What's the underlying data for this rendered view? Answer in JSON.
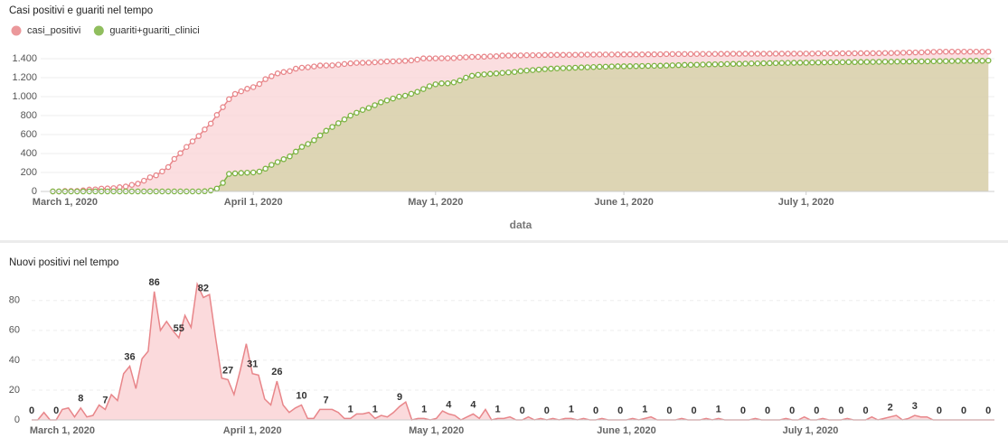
{
  "chart_data": [
    {
      "type": "area",
      "title": "Casi positivi e guariti nel tempo",
      "x_label": "data",
      "legend": "top-left",
      "markers": true,
      "grid": true,
      "xlim": [
        "2020-02-26",
        "2020-08-01"
      ],
      "xticks": [
        {
          "value": "2020-03-01",
          "label": "March 1, 2020"
        },
        {
          "value": "2020-04-01",
          "label": "April 1, 2020"
        },
        {
          "value": "2020-05-01",
          "label": "May 1, 2020"
        },
        {
          "value": "2020-06-01",
          "label": "June 1, 2020"
        },
        {
          "value": "2020-07-01",
          "label": "July 1, 2020"
        }
      ],
      "ylim": [
        0,
        1500
      ],
      "yticks": [
        0,
        200,
        400,
        600,
        800,
        {
          "value": 1000,
          "label": "1.000"
        },
        {
          "value": 1200,
          "label": "1.200"
        },
        {
          "value": 1400,
          "label": "1.400"
        }
      ],
      "x": [
        "2020-02-28",
        "2020-02-29",
        "2020-03-01",
        "2020-03-02",
        "2020-03-03",
        "2020-03-04",
        "2020-03-05",
        "2020-03-06",
        "2020-03-07",
        "2020-03-08",
        "2020-03-09",
        "2020-03-10",
        "2020-03-11",
        "2020-03-12",
        "2020-03-13",
        "2020-03-14",
        "2020-03-15",
        "2020-03-16",
        "2020-03-17",
        "2020-03-18",
        "2020-03-19",
        "2020-03-20",
        "2020-03-21",
        "2020-03-22",
        "2020-03-23",
        "2020-03-24",
        "2020-03-25",
        "2020-03-26",
        "2020-03-27",
        "2020-03-28",
        "2020-03-29",
        "2020-03-30",
        "2020-03-31",
        "2020-04-01",
        "2020-04-02",
        "2020-04-03",
        "2020-04-04",
        "2020-04-05",
        "2020-04-06",
        "2020-04-07",
        "2020-04-08",
        "2020-04-09",
        "2020-04-10",
        "2020-04-11",
        "2020-04-12",
        "2020-04-13",
        "2020-04-14",
        "2020-04-15",
        "2020-04-16",
        "2020-04-17",
        "2020-04-18",
        "2020-04-19",
        "2020-04-20",
        "2020-04-21",
        "2020-04-22",
        "2020-04-23",
        "2020-04-24",
        "2020-04-25",
        "2020-04-26",
        "2020-04-27",
        "2020-04-28",
        "2020-04-29",
        "2020-04-30",
        "2020-05-01",
        "2020-05-02",
        "2020-05-03",
        "2020-05-04",
        "2020-05-05",
        "2020-05-06",
        "2020-05-07",
        "2020-05-08",
        "2020-05-09",
        "2020-05-10",
        "2020-05-11",
        "2020-05-12",
        "2020-05-13",
        "2020-05-14",
        "2020-05-15",
        "2020-05-16",
        "2020-05-17",
        "2020-05-18",
        "2020-05-19",
        "2020-05-20",
        "2020-05-21",
        "2020-05-22",
        "2020-05-23",
        "2020-05-24",
        "2020-05-25",
        "2020-05-26",
        "2020-05-27",
        "2020-05-28",
        "2020-05-29",
        "2020-05-30",
        "2020-05-31",
        "2020-06-01",
        "2020-06-02",
        "2020-06-03",
        "2020-06-04",
        "2020-06-05",
        "2020-06-06",
        "2020-06-07",
        "2020-06-08",
        "2020-06-09",
        "2020-06-10",
        "2020-06-11",
        "2020-06-12",
        "2020-06-13",
        "2020-06-14",
        "2020-06-15",
        "2020-06-16",
        "2020-06-17",
        "2020-06-18",
        "2020-06-19",
        "2020-06-20",
        "2020-06-21",
        "2020-06-22",
        "2020-06-23",
        "2020-06-24",
        "2020-06-25",
        "2020-06-26",
        "2020-06-27",
        "2020-06-28",
        "2020-06-29",
        "2020-06-30",
        "2020-07-01",
        "2020-07-02",
        "2020-07-03",
        "2020-07-04",
        "2020-07-05",
        "2020-07-06",
        "2020-07-07",
        "2020-07-08",
        "2020-07-09",
        "2020-07-10",
        "2020-07-11",
        "2020-07-12",
        "2020-07-13",
        "2020-07-14",
        "2020-07-15",
        "2020-07-16",
        "2020-07-17",
        "2020-07-18",
        "2020-07-19",
        "2020-07-20",
        "2020-07-21",
        "2020-07-22",
        "2020-07-23",
        "2020-07-24",
        "2020-07-25",
        "2020-07-26",
        "2020-07-27",
        "2020-07-28",
        "2020-07-29",
        "2020-07-30",
        "2020-07-31"
      ],
      "series": [
        {
          "name": "casi_positivi",
          "color": "#e8868a",
          "fill": "#f9d3d6",
          "values": [
            0,
            0,
            5,
            5,
            5,
            12,
            20,
            22,
            30,
            32,
            35,
            45,
            52,
            69,
            82,
            113,
            149,
            170,
            211,
            257,
            343,
            403,
            469,
            529,
            584,
            654,
            716,
            807,
            889,
            973,
            1028,
            1056,
            1083,
            1100,
            1133,
            1184,
            1215,
            1245,
            1259,
            1269,
            1295,
            1305,
            1310,
            1318,
            1328,
            1329,
            1330,
            1337,
            1344,
            1351,
            1356,
            1357,
            1358,
            1362,
            1366,
            1371,
            1372,
            1375,
            1377,
            1382,
            1391,
            1403,
            1403,
            1404,
            1405,
            1405,
            1406,
            1412,
            1416,
            1419,
            1419,
            1421,
            1425,
            1426,
            1433,
            1433,
            1434,
            1435,
            1437,
            1437,
            1437,
            1439,
            1439,
            1440,
            1440,
            1441,
            1441,
            1442,
            1443,
            1443,
            1444,
            1444,
            1444,
            1445,
            1445,
            1445,
            1445,
            1445,
            1446,
            1446,
            1447,
            1449,
            1449,
            1449,
            1449,
            1449,
            1450,
            1450,
            1450,
            1450,
            1451,
            1451,
            1452,
            1452,
            1452,
            1452,
            1452,
            1452,
            1453,
            1453,
            1453,
            1453,
            1453,
            1454,
            1454,
            1454,
            1456,
            1456,
            1456,
            1457,
            1457,
            1457,
            1457,
            1458,
            1458,
            1458,
            1458,
            1460,
            1460,
            1461,
            1463,
            1466,
            1466,
            1467,
            1470,
            1472,
            1474,
            1474,
            1474,
            1474,
            1474,
            1474,
            1474,
            1474,
            1474
          ]
        },
        {
          "name": "guariti+guariti_clinici",
          "color": "#7cb342",
          "fill": "#d3d2a6",
          "values": [
            0,
            0,
            0,
            0,
            0,
            0,
            0,
            0,
            0,
            0,
            0,
            0,
            0,
            0,
            0,
            0,
            0,
            0,
            0,
            0,
            0,
            0,
            0,
            0,
            0,
            2,
            10,
            30,
            90,
            185,
            190,
            195,
            198,
            200,
            210,
            240,
            280,
            310,
            340,
            370,
            420,
            470,
            500,
            540,
            590,
            640,
            680,
            720,
            760,
            800,
            830,
            860,
            880,
            910,
            940,
            960,
            980,
            1000,
            1010,
            1030,
            1050,
            1080,
            1110,
            1130,
            1140,
            1140,
            1150,
            1170,
            1200,
            1220,
            1230,
            1235,
            1240,
            1245,
            1250,
            1255,
            1260,
            1270,
            1275,
            1280,
            1285,
            1290,
            1295,
            1298,
            1300,
            1302,
            1305,
            1308,
            1310,
            1312,
            1315,
            1316,
            1318,
            1320,
            1320,
            1321,
            1322,
            1323,
            1324,
            1325,
            1326,
            1328,
            1330,
            1332,
            1334,
            1335,
            1336,
            1338,
            1340,
            1341,
            1342,
            1344,
            1345,
            1346,
            1348,
            1350,
            1350,
            1352,
            1353,
            1354,
            1355,
            1356,
            1357,
            1358,
            1358,
            1360,
            1360,
            1361,
            1362,
            1362,
            1363,
            1364,
            1364,
            1365,
            1366,
            1366,
            1367,
            1368,
            1368,
            1369,
            1370,
            1370,
            1371,
            1372,
            1372,
            1373,
            1374,
            1374,
            1375,
            1376,
            1376,
            1377,
            1378,
            1378,
            1380
          ]
        }
      ]
    },
    {
      "type": "area",
      "title": "Nuovi positivi nel tempo",
      "data_labels": true,
      "grid": true,
      "xlim": [
        "2020-02-25",
        "2020-07-31"
      ],
      "xticks": [
        {
          "value": "2020-03-01",
          "label": "March 1, 2020"
        },
        {
          "value": "2020-04-01",
          "label": "April 1, 2020"
        },
        {
          "value": "2020-05-01",
          "label": "May 1, 2020"
        },
        {
          "value": "2020-06-01",
          "label": "June 1, 2020"
        },
        {
          "value": "2020-07-01",
          "label": "July 1, 2020"
        }
      ],
      "ylim": [
        0,
        95
      ],
      "yticks": [
        0,
        20,
        40,
        60,
        80
      ],
      "x": [
        "2020-02-25",
        "2020-02-26",
        "2020-02-27",
        "2020-02-28",
        "2020-02-29",
        "2020-03-01",
        "2020-03-02",
        "2020-03-03",
        "2020-03-04",
        "2020-03-05",
        "2020-03-06",
        "2020-03-07",
        "2020-03-08",
        "2020-03-09",
        "2020-03-10",
        "2020-03-11",
        "2020-03-12",
        "2020-03-13",
        "2020-03-14",
        "2020-03-15",
        "2020-03-16",
        "2020-03-17",
        "2020-03-18",
        "2020-03-19",
        "2020-03-20",
        "2020-03-21",
        "2020-03-22",
        "2020-03-23",
        "2020-03-24",
        "2020-03-25",
        "2020-03-26",
        "2020-03-27",
        "2020-03-28",
        "2020-03-29",
        "2020-03-30",
        "2020-03-31",
        "2020-04-01",
        "2020-04-02",
        "2020-04-03",
        "2020-04-04",
        "2020-04-05",
        "2020-04-06",
        "2020-04-07",
        "2020-04-08",
        "2020-04-09",
        "2020-04-10",
        "2020-04-11",
        "2020-04-12",
        "2020-04-13",
        "2020-04-14",
        "2020-04-15",
        "2020-04-16",
        "2020-04-17",
        "2020-04-18",
        "2020-04-19",
        "2020-04-20",
        "2020-04-21",
        "2020-04-22",
        "2020-04-23",
        "2020-04-24",
        "2020-04-25",
        "2020-04-26",
        "2020-04-27",
        "2020-04-28",
        "2020-04-29",
        "2020-04-30",
        "2020-05-01",
        "2020-05-02",
        "2020-05-03",
        "2020-05-04",
        "2020-05-05",
        "2020-05-06",
        "2020-05-07",
        "2020-05-08",
        "2020-05-09",
        "2020-05-10",
        "2020-05-11",
        "2020-05-12",
        "2020-05-13",
        "2020-05-14",
        "2020-05-15",
        "2020-05-16",
        "2020-05-17",
        "2020-05-18",
        "2020-05-19",
        "2020-05-20",
        "2020-05-21",
        "2020-05-22",
        "2020-05-23",
        "2020-05-24",
        "2020-05-25",
        "2020-05-26",
        "2020-05-27",
        "2020-05-28",
        "2020-05-29",
        "2020-05-30",
        "2020-05-31",
        "2020-06-01",
        "2020-06-02",
        "2020-06-03",
        "2020-06-04",
        "2020-06-05",
        "2020-06-06",
        "2020-06-07",
        "2020-06-08",
        "2020-06-09",
        "2020-06-10",
        "2020-06-11",
        "2020-06-12",
        "2020-06-13",
        "2020-06-14",
        "2020-06-15",
        "2020-06-16",
        "2020-06-17",
        "2020-06-18",
        "2020-06-19",
        "2020-06-20",
        "2020-06-21",
        "2020-06-22",
        "2020-06-23",
        "2020-06-24",
        "2020-06-25",
        "2020-06-26",
        "2020-06-27",
        "2020-06-28",
        "2020-06-29",
        "2020-06-30",
        "2020-07-01",
        "2020-07-02",
        "2020-07-03",
        "2020-07-04",
        "2020-07-05",
        "2020-07-06",
        "2020-07-07",
        "2020-07-08",
        "2020-07-09",
        "2020-07-10",
        "2020-07-11",
        "2020-07-12",
        "2020-07-13",
        "2020-07-14",
        "2020-07-15",
        "2020-07-16",
        "2020-07-17",
        "2020-07-18",
        "2020-07-19",
        "2020-07-20",
        "2020-07-21",
        "2020-07-22",
        "2020-07-23",
        "2020-07-24",
        "2020-07-25",
        "2020-07-26",
        "2020-07-27",
        "2020-07-28",
        "2020-07-29",
        "2020-07-30",
        "2020-07-31"
      ],
      "series": [
        {
          "color": "#e8868a",
          "fill": "#fbdadc",
          "values": [
            0,
            0,
            5,
            0,
            0,
            7,
            8,
            2,
            8,
            2,
            3,
            10,
            7,
            17,
            13,
            31,
            36,
            21,
            41,
            46,
            86,
            60,
            66,
            60,
            55,
            70,
            62,
            91,
            82,
            84,
            55,
            28,
            27,
            17,
            33,
            51,
            31,
            30,
            14,
            10,
            26,
            10,
            5,
            8,
            10,
            1,
            1,
            7,
            7,
            7,
            5,
            1,
            1,
            4,
            4,
            5,
            1,
            3,
            2,
            5,
            9,
            12,
            0,
            1,
            1,
            0,
            1,
            6,
            4,
            3,
            0,
            2,
            4,
            1,
            7,
            0,
            1,
            1,
            2,
            0,
            0,
            2,
            0,
            1,
            0,
            1,
            0,
            1,
            1,
            0,
            1,
            0,
            0,
            1,
            0,
            0,
            0,
            0,
            1,
            0,
            1,
            2,
            0,
            0,
            0,
            0,
            1,
            0,
            0,
            0,
            1,
            0,
            1,
            0,
            0,
            0,
            0,
            0,
            1,
            0,
            0,
            0,
            0,
            1,
            0,
            0,
            2,
            0,
            0,
            1,
            0,
            0,
            0,
            1,
            0,
            0,
            0,
            2,
            0,
            1,
            2,
            3,
            0,
            1,
            3,
            2,
            2,
            0,
            0,
            0,
            0,
            0,
            0,
            0,
            0,
            0,
            0,
            0
          ]
        }
      ]
    }
  ]
}
